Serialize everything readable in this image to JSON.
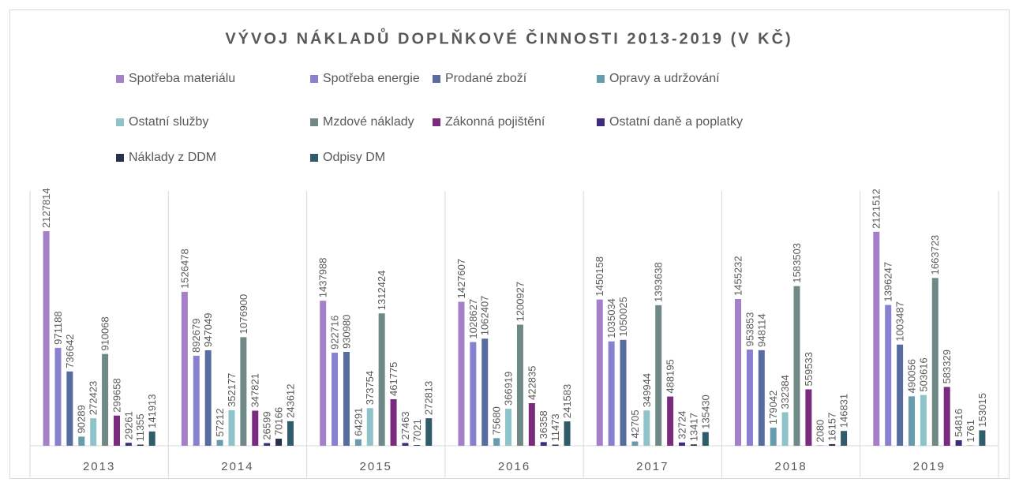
{
  "chart_data": {
    "type": "bar",
    "title": "VÝVOJ NÁKLADŮ DOPLŇKOVÉ ČINNOSTI 2013-2019 (V KČ)",
    "categories": [
      "2013",
      "2014",
      "2015",
      "2016",
      "2017",
      "2018",
      "2019"
    ],
    "series": [
      {
        "name": "Spotřeba materiálu",
        "color": "#a67fcb",
        "values": [
          2127814,
          1526478,
          1437988,
          1427607,
          1450158,
          1455232,
          2121512
        ]
      },
      {
        "name": "Spotřeba energie",
        "color": "#8781d0",
        "values": [
          971188,
          892679,
          922716,
          1028627,
          1035034,
          953853,
          1396247
        ]
      },
      {
        "name": "Prodané zboží",
        "color": "#596c9f",
        "values": [
          736642,
          947049,
          930980,
          1062407,
          1050025,
          948114,
          1003487
        ]
      },
      {
        "name": "Opravy a udržování",
        "color": "#679bae",
        "values": [
          90289,
          57212,
          64291,
          75680,
          42705,
          179042,
          490056
        ]
      },
      {
        "name": "Ostatní služby",
        "color": "#8ec3c9",
        "values": [
          272423,
          352177,
          373754,
          366919,
          349944,
          332384,
          503616
        ]
      },
      {
        "name": "Mzdové náklady",
        "color": "#6e8986",
        "values": [
          910068,
          1076900,
          1312424,
          1200927,
          1393638,
          1583503,
          1663723
        ]
      },
      {
        "name": "Zákonná pojištění",
        "color": "#7a2b7e",
        "values": [
          299658,
          347821,
          461775,
          422835,
          488195,
          559533,
          583329
        ]
      },
      {
        "name": "Ostatní daně a poplatky",
        "color": "#3d2b7d",
        "values": [
          29261,
          26599,
          27463,
          36358,
          32724,
          2080,
          54816
        ]
      },
      {
        "name": "Náklady z DDM",
        "color": "#25324a",
        "values": [
          11355,
          70166,
          7021,
          11473,
          13417,
          16157,
          1761
        ]
      },
      {
        "name": "Odpisy DM",
        "color": "#2f5b6b",
        "values": [
          141913,
          243612,
          272813,
          241583,
          135430,
          146831,
          153015
        ]
      }
    ]
  }
}
